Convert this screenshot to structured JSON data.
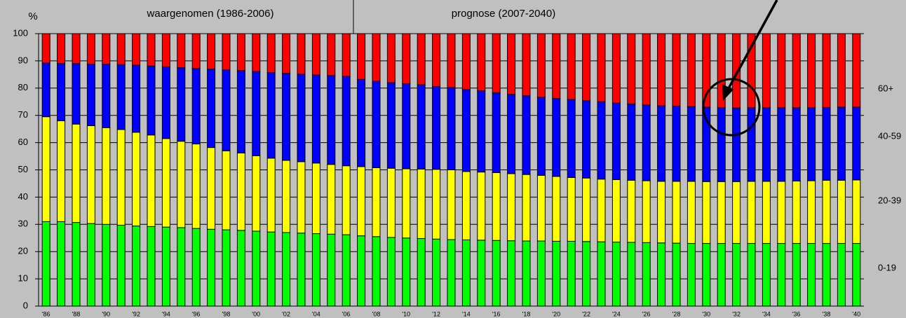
{
  "chart_data": {
    "type": "bar",
    "stacked": true,
    "y_axis_label": "%",
    "annotations": [
      "waargenomen (1986-2006)",
      "prognose (2007-2040)"
    ],
    "categories": [
      "'86",
      null,
      "'88",
      null,
      "'90",
      null,
      "'92",
      null,
      "'94",
      null,
      "'96",
      null,
      "'98",
      null,
      "'00",
      null,
      "'02",
      null,
      "'04",
      null,
      "'06",
      null,
      "'08",
      null,
      "'10",
      null,
      "'12",
      null,
      "'14",
      null,
      "'16",
      null,
      "'18",
      null,
      "'20",
      null,
      "'22",
      null,
      "'24",
      null,
      "'26",
      null,
      "'28",
      null,
      "'30",
      null,
      "'32",
      null,
      "'34",
      null,
      "'36",
      null,
      "'38",
      null,
      "'40"
    ],
    "series": [
      {
        "name": "0-19",
        "color": "#00ff00",
        "values": [
          31,
          31,
          30.7,
          30.3,
          30,
          29.7,
          29.4,
          29.2,
          29,
          28.8,
          28.5,
          28.2,
          28,
          27.8,
          27.5,
          27.2,
          27,
          26.8,
          26.6,
          26.4,
          26.2,
          25.8,
          25.5,
          25.2,
          25,
          24.8,
          24.6,
          24.4,
          24.3,
          24.2,
          24.1,
          24,
          23.9,
          23.9,
          23.8,
          23.8,
          23.7,
          23.6,
          23.5,
          23.4,
          23.3,
          23.2,
          23.1,
          23,
          23,
          23,
          23,
          23,
          23,
          23,
          23,
          23,
          23,
          23,
          23
        ]
      },
      {
        "name": "20-39",
        "color": "#ffff00",
        "values": [
          38.5,
          37,
          36.1,
          35.9,
          35.5,
          35.1,
          34.4,
          33.6,
          32.5,
          31.7,
          31,
          30,
          29,
          28.4,
          27.7,
          27.1,
          26.5,
          26.2,
          25.9,
          25.6,
          25.3,
          25.4,
          25.3,
          25.4,
          25.4,
          25.5,
          25.6,
          25.6,
          25.1,
          25,
          24.9,
          24.6,
          24.4,
          24.1,
          23.8,
          23.4,
          23.3,
          23,
          22.9,
          22.8,
          22.7,
          22.6,
          22.7,
          22.8,
          22.7,
          22.7,
          22.7,
          22.8,
          22.8,
          22.8,
          22.9,
          23,
          23.2,
          23.2,
          23.3
        ]
      },
      {
        "name": "40-59",
        "color": "#0000ff",
        "values": [
          19.7,
          21,
          22.2,
          22.6,
          23.3,
          23.8,
          24.6,
          25.3,
          26.3,
          27,
          27.7,
          28.8,
          29.7,
          30.2,
          30.9,
          31.4,
          31.9,
          32.1,
          32.3,
          32.6,
          32.8,
          32,
          31.7,
          31.4,
          31.2,
          30.9,
          30.4,
          30.2,
          30.1,
          29.8,
          29.3,
          29.1,
          28.9,
          28.6,
          28.6,
          28.6,
          28.4,
          28.4,
          28.1,
          28,
          27.8,
          27.7,
          27.6,
          27.4,
          27.3,
          27.1,
          27,
          27,
          27,
          27,
          26.9,
          26.8,
          26.7,
          26.8,
          26.7
        ]
      },
      {
        "name": "60+",
        "color": "#ff0000",
        "values": [
          10.8,
          11,
          11,
          11.2,
          11.2,
          11.4,
          11.6,
          11.9,
          12.2,
          12.5,
          12.8,
          13,
          13.3,
          13.6,
          13.9,
          14.3,
          14.6,
          14.9,
          15.2,
          15.4,
          15.7,
          16.8,
          17.5,
          18,
          18.4,
          18.8,
          19.4,
          19.8,
          20.5,
          21,
          21.7,
          22.3,
          22.8,
          23.4,
          23.8,
          24.2,
          24.6,
          25,
          25.5,
          25.8,
          26.2,
          26.5,
          26.6,
          26.8,
          27,
          27.2,
          27.3,
          27.2,
          27.2,
          27.2,
          27.2,
          27.2,
          27.1,
          27,
          27
        ]
      }
    ],
    "ylim": [
      0,
      100
    ],
    "yticks": [
      0,
      10,
      20,
      30,
      40,
      50,
      60,
      70,
      80,
      90,
      100
    ],
    "grid": true
  }
}
